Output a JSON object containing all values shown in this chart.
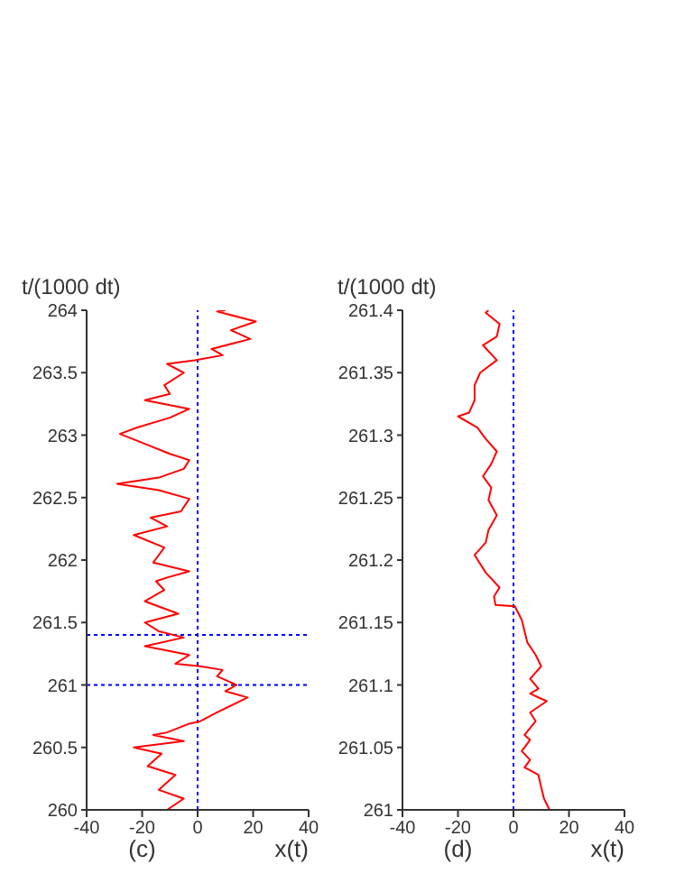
{
  "chart_data": [
    {
      "type": "line",
      "ylabel": "t/(1000 dt)",
      "xlabel": "x(t)",
      "annotations": [
        "(c)"
      ],
      "xlim": [
        -40,
        40
      ],
      "xticks": [
        -40,
        -20,
        0,
        20,
        40
      ],
      "ylim": [
        260,
        264
      ],
      "yticks": [
        260,
        260.5,
        261,
        261.5,
        262,
        262.5,
        263,
        263.5,
        264
      ],
      "series": [
        {
          "color": "#ff0000",
          "x": [
            -11,
            -5,
            -14,
            -8,
            -18,
            -13,
            -23,
            -5,
            -16,
            -11,
            -3,
            1,
            7,
            18,
            10,
            14,
            7,
            9,
            1,
            -8,
            -3,
            -19,
            -5,
            -14,
            -19,
            -7,
            -19,
            -12,
            -15,
            -11,
            -3,
            -16,
            -12,
            -23,
            -11,
            -17,
            -6,
            -3,
            -14,
            -29,
            -14,
            -5,
            -3,
            -10,
            -20,
            -28,
            -22,
            -10,
            -3,
            -19,
            -10,
            -12,
            -5,
            -11,
            -1,
            9,
            5,
            19,
            12,
            21,
            7,
            10
          ],
          "values": [
            260,
            260.09,
            260.16,
            260.28,
            260.35,
            260.45,
            260.5,
            260.55,
            260.6,
            260.62,
            260.69,
            260.71,
            260.78,
            260.9,
            260.95,
            261,
            261.07,
            261.12,
            261.15,
            261.17,
            261.24,
            261.31,
            261.38,
            261.43,
            261.5,
            261.57,
            261.67,
            261.76,
            261.83,
            261.86,
            261.91,
            261.98,
            262.1,
            262.2,
            262.27,
            262.34,
            262.39,
            262.49,
            262.56,
            262.61,
            262.66,
            262.73,
            262.8,
            262.85,
            262.94,
            263.01,
            263.06,
            263.14,
            263.21,
            263.28,
            263.33,
            263.4,
            263.5,
            263.57,
            263.6,
            263.64,
            263.69,
            263.77,
            263.84,
            263.91,
            263.99,
            264
          ]
        }
      ],
      "ref_lines": [
        {
          "axis": "x",
          "value": 0,
          "color": "#0000ff",
          "line_style": "dotted"
        },
        {
          "axis": "y",
          "value": 261,
          "color": "#0000ff",
          "line_style": "dotted"
        },
        {
          "axis": "y",
          "value": 261.4,
          "color": "#0000ff",
          "line_style": "dotted"
        }
      ]
    },
    {
      "type": "line",
      "ylabel": "t/(1000 dt)",
      "xlabel": "x(t)",
      "annotations": [
        "(d)"
      ],
      "xlim": [
        -40,
        40
      ],
      "xticks": [
        -40,
        -20,
        0,
        20,
        40
      ],
      "ylim": [
        261,
        261.4
      ],
      "yticks": [
        261,
        261.05,
        261.1,
        261.15,
        261.2,
        261.25,
        261.3,
        261.35,
        261.4
      ],
      "series": [
        {
          "color": "#ff0000",
          "x": [
            13,
            11,
            10,
            9,
            4,
            6,
            3,
            6,
            4,
            8,
            6,
            12,
            6,
            9,
            6,
            10,
            8,
            5,
            4,
            3,
            0.5,
            -6.5,
            -7,
            -5,
            -10,
            -14,
            -10,
            -9,
            -6,
            -9,
            -8,
            -11,
            -8,
            -6,
            -10,
            -13,
            -20,
            -16,
            -14,
            -14,
            -12,
            -6,
            -11,
            -6,
            -5,
            -10,
            -9
          ],
          "values": [
            261,
            261.009,
            261.018,
            261.028,
            261.034,
            261.04,
            261.047,
            261.056,
            261.06,
            261.071,
            261.078,
            261.087,
            261.093,
            261.097,
            261.105,
            261.115,
            261.124,
            261.134,
            261.143,
            261.152,
            261.163,
            261.164,
            261.171,
            261.178,
            261.19,
            261.204,
            261.214,
            261.224,
            261.236,
            261.248,
            261.258,
            261.267,
            261.277,
            261.287,
            261.297,
            261.306,
            261.315,
            261.318,
            261.328,
            261.34,
            261.35,
            261.36,
            261.372,
            261.379,
            261.389,
            261.398,
            261.4
          ]
        }
      ],
      "ref_lines": [
        {
          "axis": "x",
          "value": 0,
          "color": "#0000ff",
          "line_style": "dotted"
        }
      ]
    }
  ]
}
